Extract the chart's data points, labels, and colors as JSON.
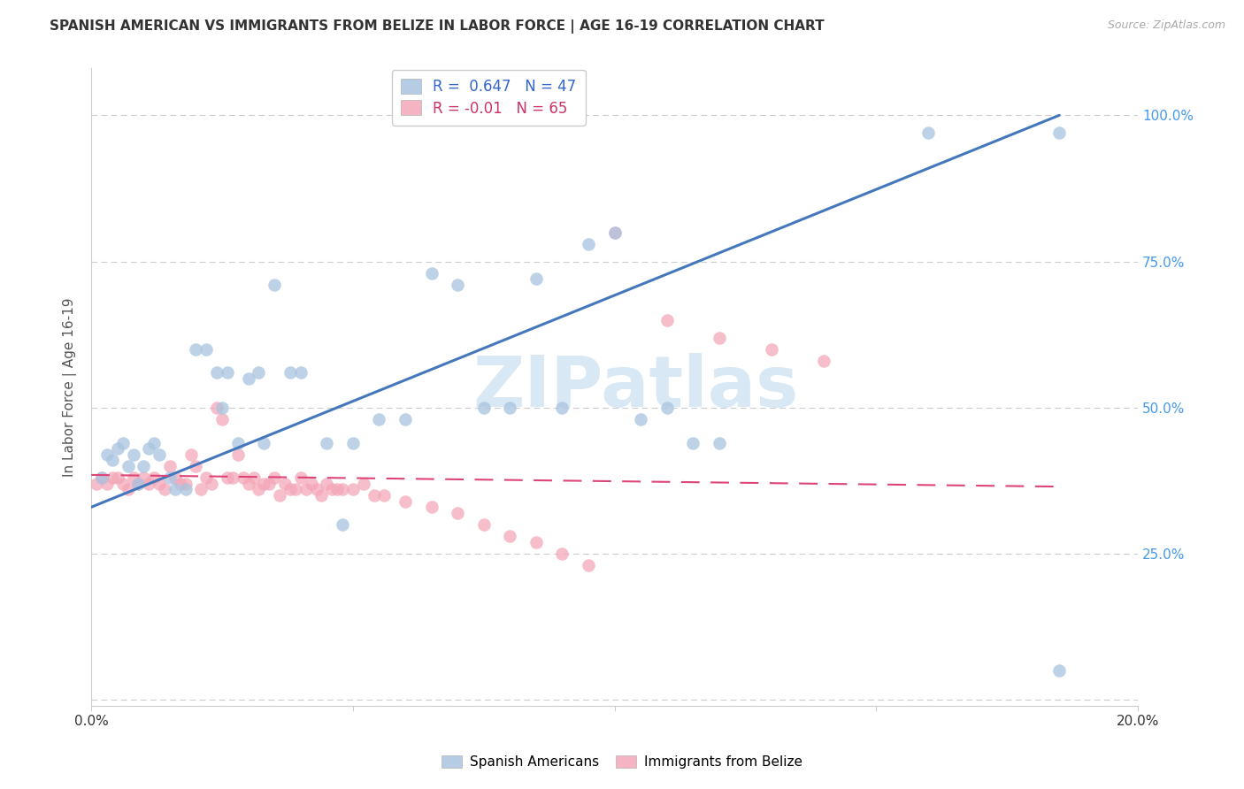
{
  "title": "SPANISH AMERICAN VS IMMIGRANTS FROM BELIZE IN LABOR FORCE | AGE 16-19 CORRELATION CHART",
  "source": "Source: ZipAtlas.com",
  "ylabel": "In Labor Force | Age 16-19",
  "xlim": [
    0.0,
    0.2
  ],
  "ylim": [
    -0.01,
    1.08
  ],
  "yticks": [
    0.0,
    0.25,
    0.5,
    0.75,
    1.0
  ],
  "ytick_labels": [
    "",
    "25.0%",
    "50.0%",
    "75.0%",
    "100.0%"
  ],
  "xticks": [
    0.0,
    0.05,
    0.1,
    0.15,
    0.2
  ],
  "xtick_labels": [
    "0.0%",
    "",
    "",
    "",
    "20.0%"
  ],
  "blue_R": 0.647,
  "blue_N": 47,
  "pink_R": -0.01,
  "pink_N": 65,
  "blue_color": "#a8c4e0",
  "pink_color": "#f4a7b9",
  "blue_line_color": "#4477bb",
  "pink_line_color": "#dd4477",
  "watermark_color": "#d8e8f4",
  "blue_line_x": [
    0.0,
    0.185
  ],
  "blue_line_y": [
    0.33,
    1.0
  ],
  "pink_line_x": [
    0.0,
    0.185
  ],
  "pink_line_y": [
    0.385,
    0.365
  ],
  "blue_scatter_x": [
    0.002,
    0.003,
    0.004,
    0.005,
    0.006,
    0.007,
    0.008,
    0.009,
    0.01,
    0.011,
    0.012,
    0.013,
    0.015,
    0.016,
    0.018,
    0.02,
    0.022,
    0.024,
    0.026,
    0.028,
    0.03,
    0.032,
    0.035,
    0.038,
    0.04,
    0.045,
    0.05,
    0.055,
    0.06,
    0.065,
    0.07,
    0.075,
    0.08,
    0.085,
    0.09,
    0.095,
    0.1,
    0.105,
    0.11,
    0.115,
    0.12,
    0.025,
    0.033,
    0.048,
    0.16,
    0.185,
    0.185
  ],
  "blue_scatter_y": [
    0.38,
    0.42,
    0.41,
    0.43,
    0.44,
    0.4,
    0.42,
    0.37,
    0.4,
    0.43,
    0.44,
    0.42,
    0.38,
    0.36,
    0.36,
    0.6,
    0.6,
    0.56,
    0.56,
    0.44,
    0.55,
    0.56,
    0.71,
    0.56,
    0.56,
    0.44,
    0.44,
    0.48,
    0.48,
    0.73,
    0.71,
    0.5,
    0.5,
    0.72,
    0.5,
    0.78,
    0.8,
    0.48,
    0.5,
    0.44,
    0.44,
    0.5,
    0.44,
    0.3,
    0.97,
    0.97,
    0.05
  ],
  "pink_scatter_x": [
    0.001,
    0.002,
    0.003,
    0.004,
    0.005,
    0.006,
    0.007,
    0.008,
    0.009,
    0.01,
    0.011,
    0.012,
    0.013,
    0.014,
    0.015,
    0.016,
    0.017,
    0.018,
    0.019,
    0.02,
    0.021,
    0.022,
    0.023,
    0.024,
    0.025,
    0.026,
    0.027,
    0.028,
    0.029,
    0.03,
    0.031,
    0.032,
    0.033,
    0.034,
    0.035,
    0.036,
    0.037,
    0.038,
    0.039,
    0.04,
    0.041,
    0.042,
    0.043,
    0.044,
    0.045,
    0.046,
    0.047,
    0.048,
    0.05,
    0.052,
    0.054,
    0.056,
    0.06,
    0.065,
    0.07,
    0.075,
    0.08,
    0.085,
    0.09,
    0.095,
    0.1,
    0.11,
    0.12,
    0.13,
    0.14
  ],
  "pink_scatter_y": [
    0.37,
    0.38,
    0.37,
    0.38,
    0.38,
    0.37,
    0.36,
    0.38,
    0.37,
    0.38,
    0.37,
    0.38,
    0.37,
    0.36,
    0.4,
    0.38,
    0.37,
    0.37,
    0.42,
    0.4,
    0.36,
    0.38,
    0.37,
    0.5,
    0.48,
    0.38,
    0.38,
    0.42,
    0.38,
    0.37,
    0.38,
    0.36,
    0.37,
    0.37,
    0.38,
    0.35,
    0.37,
    0.36,
    0.36,
    0.38,
    0.36,
    0.37,
    0.36,
    0.35,
    0.37,
    0.36,
    0.36,
    0.36,
    0.36,
    0.37,
    0.35,
    0.35,
    0.34,
    0.33,
    0.32,
    0.3,
    0.28,
    0.27,
    0.25,
    0.23,
    0.8,
    0.65,
    0.62,
    0.6,
    0.58
  ]
}
